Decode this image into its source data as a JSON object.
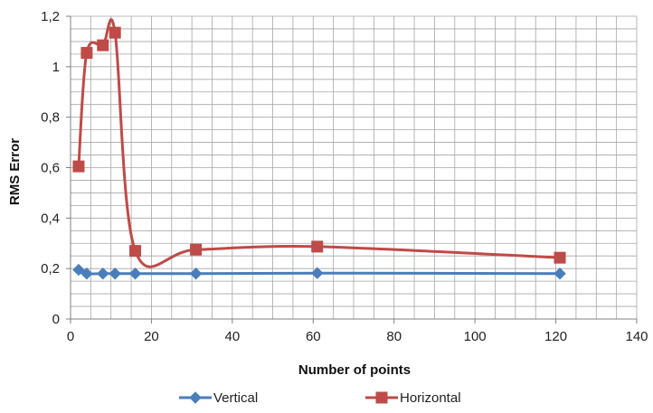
{
  "chart_data": {
    "type": "line",
    "title": "",
    "xlabel": "Number of points",
    "ylabel": "RMS Error",
    "xlim": [
      0,
      140
    ],
    "ylim": [
      0,
      1.2
    ],
    "x_ticks": [
      "0",
      "20",
      "40",
      "60",
      "80",
      "100",
      "120",
      "140"
    ],
    "y_ticks": [
      "0",
      "0,2",
      "0,4",
      "0,6",
      "0,8",
      "1",
      "1,2"
    ],
    "grid": true,
    "smooth": true,
    "legend_position": "bottom",
    "series": [
      {
        "name": "Vertical",
        "color": "#4A7EBB",
        "marker": "diamond",
        "x": [
          2,
          4,
          8,
          11,
          16,
          31,
          61,
          121
        ],
        "y": [
          0.195,
          0.18,
          0.18,
          0.18,
          0.18,
          0.18,
          0.182,
          0.18
        ]
      },
      {
        "name": "Horizontal",
        "color": "#BE4B48",
        "marker": "square",
        "x": [
          2,
          4,
          8,
          11,
          16,
          31,
          61,
          121
        ],
        "y": [
          0.605,
          1.055,
          1.085,
          1.135,
          0.27,
          0.275,
          0.287,
          0.243
        ]
      }
    ]
  }
}
